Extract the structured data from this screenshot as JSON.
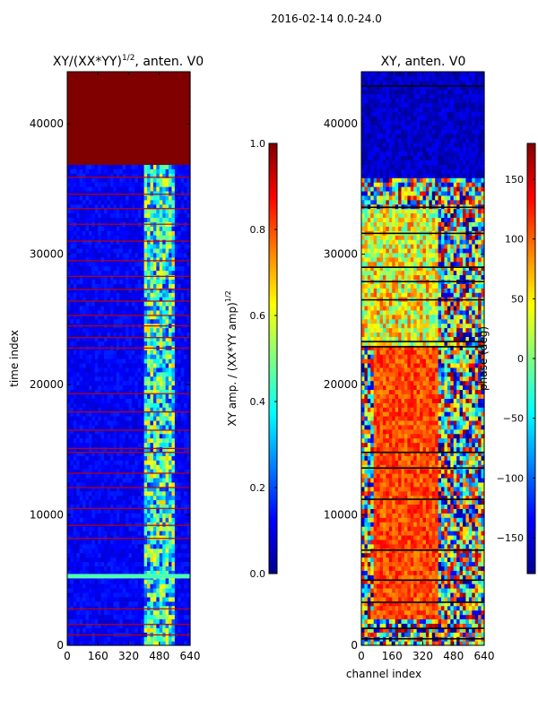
{
  "suptitle": "2016-02-14 0.0-24.0",
  "colormap": "jet",
  "chart_data": [
    {
      "type": "heatmap",
      "title": "XY/(XX*YY)^{1/2}, anten. V0",
      "title_main": "XY/(XX*YY)",
      "title_exponent": "1/2",
      "title_suffix": ", anten. V0",
      "xlabel": "",
      "ylabel": "time index",
      "xlim": [
        0,
        640
      ],
      "ylim": [
        0,
        44000
      ],
      "xticks": [
        0,
        160,
        320,
        480,
        640
      ],
      "yticks": [
        0,
        10000,
        20000,
        30000,
        40000
      ],
      "colorbar": {
        "label": "XY amp. / (XX*YY amp)^{1/2}",
        "label_main": "XY amp. / (XX*YY amp)",
        "label_exponent": "1/2",
        "range": [
          0.0,
          1.0
        ],
        "ticks": [
          0.0,
          0.2,
          0.4,
          0.6,
          0.8,
          1.0
        ],
        "tick_labels": [
          "0.0",
          "0.2",
          "0.4",
          "0.6",
          "0.8",
          "1.0"
        ]
      },
      "features": {
        "background_value": 0.12,
        "saturated_time_range": [
          37000,
          44000
        ],
        "saturated_value": 1.0,
        "bright_channel_range": [
          400,
          560
        ],
        "bright_channel_value": 0.45,
        "flagged_rows": [
          800,
          1600,
          2800,
          5200,
          8200,
          9200,
          10500,
          12100,
          13200,
          14800,
          15100,
          16500,
          17900,
          19300,
          22800,
          23600,
          24500,
          25300,
          26400,
          27300,
          28300,
          29500,
          31000,
          32300,
          33500,
          34600,
          35900
        ],
        "hot_row": 5300
      }
    },
    {
      "type": "heatmap",
      "title": "XY, anten. V0",
      "xlabel": "channel index",
      "ylabel": "",
      "xlim": [
        0,
        640
      ],
      "ylim": [
        0,
        44000
      ],
      "xticks": [
        0,
        160,
        320,
        480,
        640
      ],
      "yticks": [
        0,
        10000,
        20000,
        30000,
        40000
      ],
      "colorbar": {
        "label": "phase (deg)",
        "range": [
          -180,
          180
        ],
        "ticks": [
          -150,
          -100,
          -50,
          0,
          50,
          100,
          150
        ],
        "tick_labels": [
          "−150",
          "−100",
          "−50",
          "0",
          "50",
          "100",
          "150"
        ]
      },
      "features": {
        "background_value": -175,
        "warm_time_range": [
          2000,
          23000
        ],
        "warm_channel_range": [
          60,
          400
        ],
        "warm_value": 110,
        "mid_time_range": [
          23000,
          33500
        ],
        "mid_value": 40,
        "noisy_channel_range": [
          400,
          640
        ],
        "dark_time_range": [
          36000,
          44000
        ],
        "black_rows": [
          500,
          1300,
          3300,
          5000,
          7300,
          11200,
          13600,
          14800,
          22900,
          23300,
          26500,
          27900,
          29000,
          31600,
          33600,
          42900
        ]
      }
    }
  ]
}
